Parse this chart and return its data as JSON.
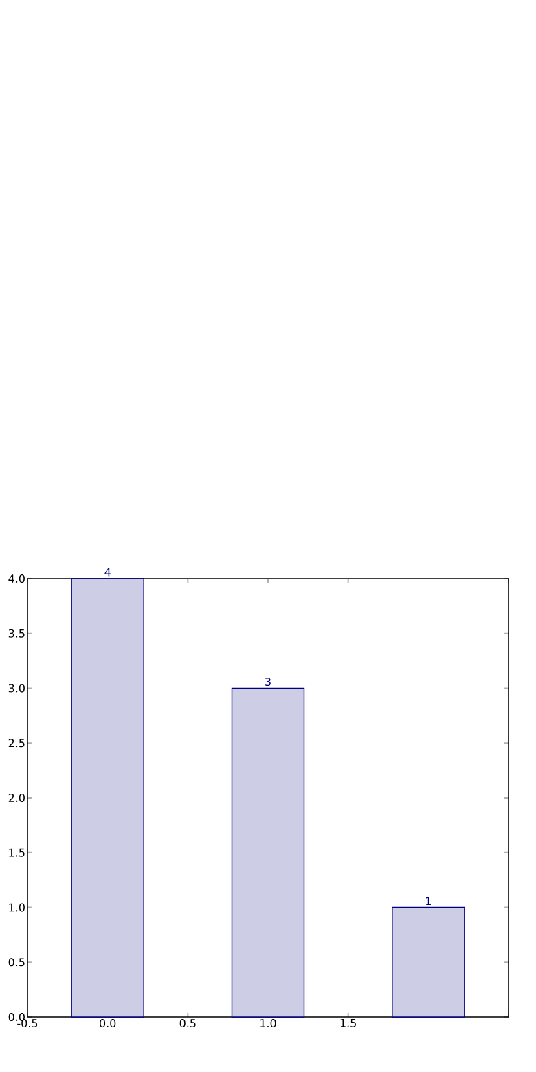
{
  "chart_data": {
    "type": "bar",
    "x": [
      0,
      1,
      2
    ],
    "values": [
      4,
      3,
      1
    ],
    "color": "#cdcde6",
    "data_labels": true,
    "xlim": [
      -0.5,
      2.5
    ],
    "ylim": [
      0,
      4
    ],
    "xticks": [
      -0.5,
      {
        "value": 0,
        "label": "0.0"
      },
      0.5,
      {
        "value": 1,
        "label": "1.0"
      },
      1.5,
      {
        "value": 2.5,
        "label": null
      }
    ],
    "yticks": [
      {
        "value": 0,
        "label": "0.0"
      },
      0.5,
      {
        "value": 1,
        "label": "1.0"
      },
      1.5,
      {
        "value": 2,
        "label": "2.0"
      },
      2.5,
      {
        "value": 3,
        "label": "3.0"
      },
      3.5,
      {
        "value": 4,
        "label": "4.0"
      }
    ]
  }
}
